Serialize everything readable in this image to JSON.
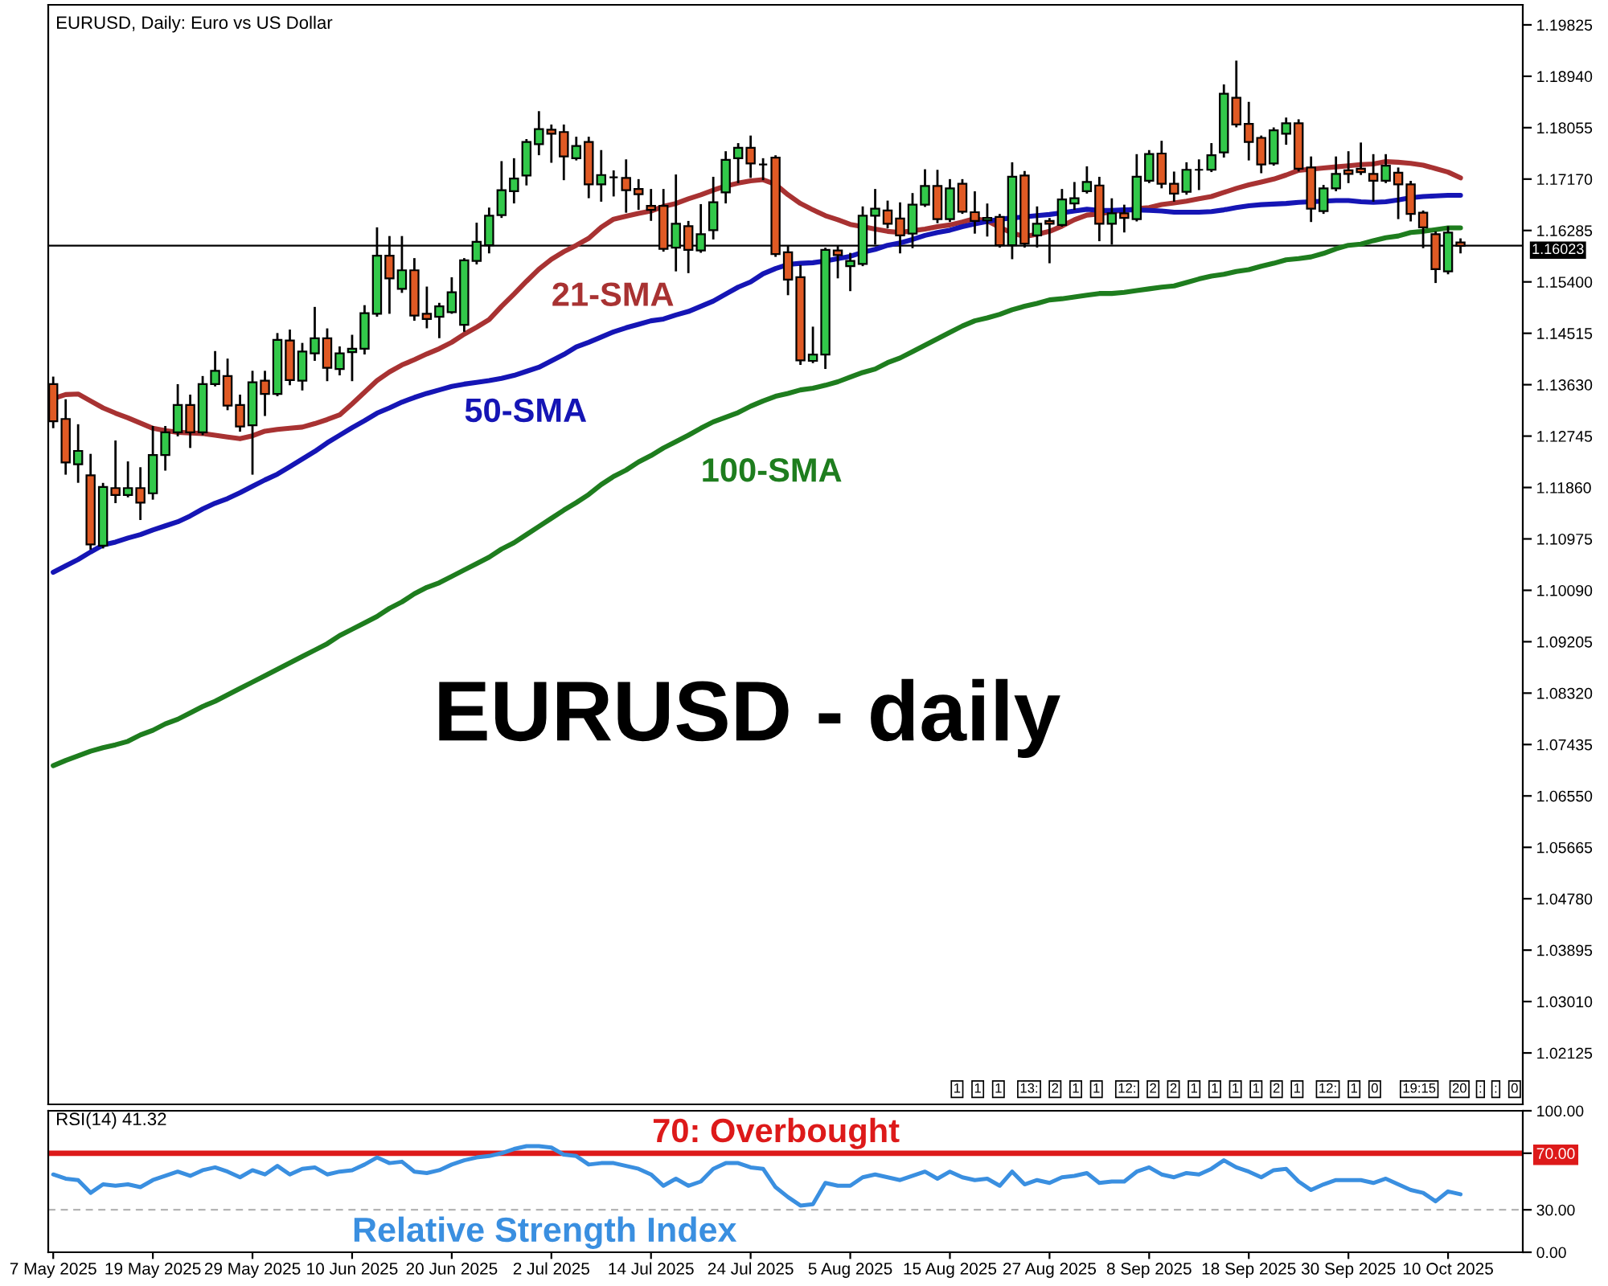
{
  "chart_data": [
    {
      "type": "candlestick",
      "title": "EURUSD, Daily: Euro vs US Dollar",
      "subtitle": "EURUSD - daily",
      "categories": [
        "7 May 2025",
        null,
        null,
        null,
        null,
        null,
        null,
        null,
        "19 May 2025",
        null,
        null,
        null,
        null,
        null,
        null,
        null,
        "29 May 2025",
        null,
        null,
        null,
        null,
        null,
        null,
        null,
        "10 Jun 2025",
        null,
        null,
        null,
        null,
        null,
        null,
        null,
        "20 Jun 2025",
        null,
        null,
        null,
        null,
        null,
        null,
        null,
        "2 Jul 2025",
        null,
        null,
        null,
        null,
        null,
        null,
        null,
        "14 Jul 2025",
        null,
        null,
        null,
        null,
        null,
        null,
        null,
        "24 Jul 2025",
        null,
        null,
        null,
        null,
        null,
        null,
        null,
        "5 Aug 2025",
        null,
        null,
        null,
        null,
        null,
        null,
        null,
        "15 Aug 2025",
        null,
        null,
        null,
        null,
        null,
        null,
        null,
        "27 Aug 2025",
        null,
        null,
        null,
        null,
        null,
        null,
        null,
        "8 Sep 2025",
        null,
        null,
        null,
        null,
        null,
        null,
        null,
        "18 Sep 2025",
        null,
        null,
        null,
        null,
        null,
        null,
        null,
        "30 Sep 2025",
        null,
        null,
        null,
        null,
        null,
        null,
        null,
        "10 Oct 2025",
        null
      ],
      "ohlc": [
        [
          1.1364,
          1.1375,
          1.129,
          1.13
        ],
        [
          1.1304,
          1.1336,
          1.121,
          1.1229
        ],
        [
          1.1226,
          1.1293,
          1.1196,
          1.1249
        ],
        [
          1.1207,
          1.1242,
          1.1081,
          1.1088
        ],
        [
          1.1086,
          1.1192,
          1.1083,
          1.1187
        ],
        [
          1.1185,
          1.1265,
          1.1161,
          1.1173
        ],
        [
          1.1173,
          1.1229,
          1.1171,
          1.1185
        ],
        [
          1.1185,
          1.1219,
          1.1132,
          1.116
        ],
        [
          1.1176,
          1.129,
          1.1167,
          1.1242
        ],
        [
          1.1242,
          1.129,
          1.1217,
          1.1281
        ],
        [
          1.1281,
          1.1362,
          1.1276,
          1.1328
        ],
        [
          1.1328,
          1.1344,
          1.1256,
          1.1281
        ],
        [
          1.1281,
          1.1376,
          1.1278,
          1.1364
        ],
        [
          1.1364,
          1.1419,
          1.1362,
          1.1387
        ],
        [
          1.1378,
          1.1406,
          1.1321,
          1.1327
        ],
        [
          1.1328,
          1.1344,
          1.1284,
          1.1291
        ],
        [
          1.1293,
          1.1385,
          1.121,
          1.1367
        ],
        [
          1.137,
          1.1385,
          1.1311,
          1.1347
        ],
        [
          1.1347,
          1.145,
          1.1345,
          1.144
        ],
        [
          1.1439,
          1.1456,
          1.1364,
          1.1371
        ],
        [
          1.137,
          1.1433,
          1.1355,
          1.142
        ],
        [
          1.1417,
          1.1495,
          1.1406,
          1.1443
        ],
        [
          1.1443,
          1.1458,
          1.1371,
          1.1392
        ],
        [
          1.139,
          1.1427,
          1.1381,
          1.1417
        ],
        [
          1.1419,
          1.1447,
          1.1371,
          1.1425
        ],
        [
          1.1425,
          1.1498,
          1.1417,
          1.1486
        ],
        [
          1.1485,
          1.1632,
          1.1482,
          1.1585
        ],
        [
          1.1585,
          1.1617,
          1.1487,
          1.1546
        ],
        [
          1.1528,
          1.1617,
          1.1523,
          1.156
        ],
        [
          1.156,
          1.1579,
          1.1475,
          1.1482
        ],
        [
          1.1485,
          1.153,
          1.1462,
          1.1476
        ],
        [
          1.148,
          1.1502,
          1.1445,
          1.1498
        ],
        [
          1.1488,
          1.1546,
          1.1487,
          1.1522
        ],
        [
          1.1466,
          1.1579,
          1.1456,
          1.1577
        ],
        [
          1.1576,
          1.164,
          1.1572,
          1.1609
        ],
        [
          1.1603,
          1.1666,
          1.1591,
          1.1654
        ],
        [
          1.1655,
          1.1746,
          1.1652,
          1.1698
        ],
        [
          1.1696,
          1.1751,
          1.1677,
          1.1718
        ],
        [
          1.1723,
          1.1784,
          1.1708,
          1.1781
        ],
        [
          1.1777,
          1.1832,
          1.176,
          1.1803
        ],
        [
          1.1802,
          1.1809,
          1.1747,
          1.1795
        ],
        [
          1.1798,
          1.1809,
          1.1717,
          1.1756
        ],
        [
          1.1753,
          1.1788,
          1.1751,
          1.1774
        ],
        [
          1.1781,
          1.1788,
          1.1686,
          1.1708
        ],
        [
          1.1708,
          1.1765,
          1.168,
          1.1724
        ],
        [
          1.172,
          1.173,
          1.1689,
          1.172
        ],
        [
          1.1719,
          1.1749,
          1.1661,
          1.1698
        ],
        [
          1.17,
          1.1715,
          1.1666,
          1.1691
        ],
        [
          1.1671,
          1.1698,
          1.1647,
          1.1664
        ],
        [
          1.1671,
          1.1698,
          1.1594,
          1.1597
        ],
        [
          1.1599,
          1.1723,
          1.156,
          1.164
        ],
        [
          1.1636,
          1.1643,
          1.1557,
          1.1595
        ],
        [
          1.1594,
          1.1672,
          1.1592,
          1.1622
        ],
        [
          1.1629,
          1.1719,
          1.1615,
          1.1677
        ],
        [
          1.1694,
          1.1763,
          1.1677,
          1.175
        ],
        [
          1.1753,
          1.1777,
          1.1712,
          1.1771
        ],
        [
          1.1771,
          1.179,
          1.1721,
          1.1744
        ],
        [
          1.1742,
          1.1751,
          1.1717,
          1.1742
        ],
        [
          1.1754,
          1.1756,
          1.1585,
          1.1588
        ],
        [
          1.1591,
          1.16,
          1.1519,
          1.1544
        ],
        [
          1.1548,
          1.1567,
          1.1399,
          1.1405
        ],
        [
          1.1404,
          1.1461,
          1.1402,
          1.1415
        ],
        [
          1.1415,
          1.1597,
          1.1392,
          1.1595
        ],
        [
          1.1594,
          1.16,
          1.1548,
          1.1586
        ],
        [
          1.1567,
          1.1588,
          1.1526,
          1.1576
        ],
        [
          1.1571,
          1.1668,
          1.1569,
          1.1654
        ],
        [
          1.1654,
          1.1698,
          1.1606,
          1.1666
        ],
        [
          1.1663,
          1.1678,
          1.1634,
          1.164
        ],
        [
          1.1649,
          1.1675,
          1.1591,
          1.162
        ],
        [
          1.1623,
          1.1691,
          1.16,
          1.1673
        ],
        [
          1.1673,
          1.1732,
          1.1671,
          1.1705
        ],
        [
          1.1705,
          1.1731,
          1.1643,
          1.1648
        ],
        [
          1.1648,
          1.1715,
          1.1645,
          1.1701
        ],
        [
          1.1709,
          1.1715,
          1.1659,
          1.1661
        ],
        [
          1.166,
          1.1694,
          1.1625,
          1.1645
        ],
        [
          1.1646,
          1.1673,
          1.162,
          1.165
        ],
        [
          1.1652,
          1.1655,
          1.1601,
          1.1603
        ],
        [
          1.1603,
          1.1744,
          1.1581,
          1.1721
        ],
        [
          1.1723,
          1.1729,
          1.1601,
          1.1606
        ],
        [
          1.162,
          1.1668,
          1.1601,
          1.164
        ],
        [
          1.1645,
          1.1648,
          1.1574,
          1.164
        ],
        [
          1.1638,
          1.1698,
          1.1637,
          1.1682
        ],
        [
          1.1675,
          1.171,
          1.1666,
          1.1684
        ],
        [
          1.1696,
          1.1737,
          1.1694,
          1.1712
        ],
        [
          1.1706,
          1.1719,
          1.1612,
          1.164
        ],
        [
          1.164,
          1.1682,
          1.1606,
          1.1658
        ],
        [
          1.1658,
          1.1671,
          1.1627,
          1.165
        ],
        [
          1.1648,
          1.1758,
          1.1646,
          1.1721
        ],
        [
          1.1714,
          1.1765,
          1.1712,
          1.176
        ],
        [
          1.1761,
          1.1781,
          1.1703,
          1.1709
        ],
        [
          1.1709,
          1.1728,
          1.168,
          1.1692
        ],
        [
          1.1695,
          1.1744,
          1.1692,
          1.1733
        ],
        [
          1.1733,
          1.1749,
          1.17,
          1.1733
        ],
        [
          1.1733,
          1.1777,
          1.1731,
          1.1758
        ],
        [
          1.1763,
          1.1878,
          1.1756,
          1.1864
        ],
        [
          1.1857,
          1.1919,
          1.1808,
          1.1811
        ],
        [
          1.1812,
          1.1848,
          1.1751,
          1.1781
        ],
        [
          1.1788,
          1.179,
          1.1729,
          1.1742
        ],
        [
          1.1744,
          1.1804,
          1.1742,
          1.1801
        ],
        [
          1.1795,
          1.1821,
          1.1778,
          1.1813
        ],
        [
          1.1813,
          1.1818,
          1.1732,
          1.1735
        ],
        [
          1.1737,
          1.1754,
          1.1645,
          1.1666
        ],
        [
          1.1662,
          1.1705,
          1.1659,
          1.1701
        ],
        [
          1.1701,
          1.1754,
          1.1698,
          1.1726
        ],
        [
          1.1732,
          1.1763,
          1.1712,
          1.1726
        ],
        [
          1.1735,
          1.1778,
          1.1726,
          1.1729
        ],
        [
          1.1726,
          1.1758,
          1.168,
          1.1714
        ],
        [
          1.1714,
          1.1758,
          1.1712,
          1.174
        ],
        [
          1.1728,
          1.1735,
          1.165,
          1.1708
        ],
        [
          1.1708,
          1.1712,
          1.1646,
          1.1657
        ],
        [
          1.1659,
          1.1661,
          1.16,
          1.1634
        ],
        [
          1.1622,
          1.1625,
          1.154,
          1.1562
        ],
        [
          1.1558,
          1.1634,
          1.1555,
          1.1625
        ],
        [
          1.1608,
          1.1613,
          1.1591,
          1.1602
        ]
      ],
      "colors": [
        "#e05a24",
        "#e05a24",
        "#32c84a",
        "#e05a24",
        "#32c84a",
        "#e05a24",
        "#32c84a",
        "#e05a24",
        "#32c84a",
        "#32c84a",
        "#32c84a",
        "#e05a24",
        "#32c84a",
        "#32c84a",
        "#e05a24",
        "#e05a24",
        "#32c84a",
        "#e05a24",
        "#32c84a",
        "#e05a24",
        "#32c84a",
        "#32c84a",
        "#e05a24",
        "#32c84a",
        "#32c84a",
        "#32c84a",
        "#32c84a",
        "#e05a24",
        "#32c84a",
        "#e05a24",
        "#e05a24",
        "#32c84a",
        "#32c84a",
        "#32c84a",
        "#32c84a",
        "#32c84a",
        "#32c84a",
        "#32c84a",
        "#32c84a",
        "#32c84a",
        "#e05a24",
        "#e05a24",
        "#32c84a",
        "#e05a24",
        "#32c84a",
        "#000000",
        "#e05a24",
        "#e05a24",
        "#e05a24",
        "#e05a24",
        "#32c84a",
        "#e05a24",
        "#32c84a",
        "#32c84a",
        "#32c84a",
        "#32c84a",
        "#e05a24",
        "#000000",
        "#e05a24",
        "#e05a24",
        "#e05a24",
        "#32c84a",
        "#32c84a",
        "#e05a24",
        "#32c84a",
        "#32c84a",
        "#32c84a",
        "#e05a24",
        "#e05a24",
        "#32c84a",
        "#32c84a",
        "#e05a24",
        "#32c84a",
        "#e05a24",
        "#e05a24",
        "#32c84a",
        "#e05a24",
        "#32c84a",
        "#e05a24",
        "#32c84a",
        "#e05a24",
        "#32c84a",
        "#32c84a",
        "#32c84a",
        "#e05a24",
        "#32c84a",
        "#e05a24",
        "#32c84a",
        "#32c84a",
        "#e05a24",
        "#e05a24",
        "#32c84a",
        "#000000",
        "#32c84a",
        "#32c84a",
        "#e05a24",
        "#e05a24",
        "#e05a24",
        "#32c84a",
        "#32c84a",
        "#e05a24",
        "#e05a24",
        "#32c84a",
        "#32c84a",
        "#e05a24",
        "#e05a24",
        "#e05a24",
        "#32c84a",
        "#e05a24",
        "#e05a24",
        "#e05a24",
        "#e05a24",
        "#32c84a",
        "#e05a24"
      ],
      "series": [
        {
          "name": "21-SMA",
          "type": "line",
          "color": "#a83232",
          "values": [
            1.1339,
            1.1346,
            1.1347,
            1.1335,
            1.1323,
            1.1314,
            1.1306,
            1.1297,
            1.1288,
            1.1284,
            1.1281,
            1.128,
            1.1279,
            1.1276,
            1.1273,
            1.127,
            1.1275,
            1.1283,
            1.1286,
            1.1288,
            1.129,
            1.1296,
            1.1303,
            1.1311,
            1.133,
            1.135,
            1.137,
            1.1385,
            1.1397,
            1.1406,
            1.1416,
            1.1425,
            1.1436,
            1.145,
            1.1462,
            1.1475,
            1.1498,
            1.1519,
            1.1541,
            1.1562,
            1.1579,
            1.1592,
            1.1603,
            1.1615,
            1.1634,
            1.1648,
            1.1653,
            1.1658,
            1.1662,
            1.167,
            1.1675,
            1.1683,
            1.169,
            1.1698,
            1.1705,
            1.171,
            1.1714,
            1.1716,
            1.1708,
            1.169,
            1.1675,
            1.1664,
            1.1654,
            1.1647,
            1.1639,
            1.1635,
            1.1631,
            1.1627,
            1.1625,
            1.1628,
            1.1631,
            1.1635,
            1.1638,
            1.1643,
            1.1649,
            1.1645,
            1.1634,
            1.1624,
            1.1618,
            1.1622,
            1.1627,
            1.1636,
            1.1647,
            1.1655,
            1.1657,
            1.1661,
            1.1663,
            1.1666,
            1.1668,
            1.1673,
            1.1676,
            1.1679,
            1.1683,
            1.1687,
            1.1694,
            1.1701,
            1.1707,
            1.1712,
            1.1717,
            1.1724,
            1.1732,
            1.1734,
            1.1736,
            1.1738,
            1.174,
            1.1742,
            1.1743,
            1.1747,
            1.1746,
            1.1744,
            1.1741,
            1.1735,
            1.1729,
            1.1719
          ]
        },
        {
          "name": "50-SMA",
          "type": "line",
          "color": "#1515b5",
          "values": [
            1.104,
            1.1051,
            1.1062,
            1.1075,
            1.1087,
            1.1092,
            1.1099,
            1.1105,
            1.1113,
            1.112,
            1.1127,
            1.1137,
            1.1149,
            1.1159,
            1.1167,
            1.1177,
            1.1188,
            1.1199,
            1.1209,
            1.1222,
            1.1235,
            1.1248,
            1.1263,
            1.1276,
            1.1289,
            1.1301,
            1.1314,
            1.1323,
            1.1333,
            1.1341,
            1.1348,
            1.1354,
            1.136,
            1.1364,
            1.1367,
            1.137,
            1.1374,
            1.1379,
            1.1386,
            1.1393,
            1.1404,
            1.1415,
            1.1428,
            1.1436,
            1.1445,
            1.1454,
            1.1461,
            1.1467,
            1.1473,
            1.1476,
            1.1483,
            1.1489,
            1.1498,
            1.1507,
            1.1519,
            1.1531,
            1.154,
            1.1554,
            1.1563,
            1.157,
            1.1572,
            1.1573,
            1.1576,
            1.158,
            1.1584,
            1.1591,
            1.1596,
            1.1603,
            1.1607,
            1.1613,
            1.162,
            1.1625,
            1.1629,
            1.1635,
            1.164,
            1.1644,
            1.1648,
            1.165,
            1.1652,
            1.1654,
            1.1656,
            1.1659,
            1.1662,
            1.1665,
            1.1663,
            1.1663,
            1.1664,
            1.1664,
            1.1663,
            1.1662,
            1.166,
            1.166,
            1.166,
            1.1661,
            1.1664,
            1.1668,
            1.1671,
            1.1673,
            1.1674,
            1.1675,
            1.1677,
            1.1678,
            1.1679,
            1.168,
            1.168,
            1.1678,
            1.1677,
            1.1678,
            1.1681,
            1.1685,
            1.1687,
            1.1688,
            1.1689,
            1.1689
          ]
        },
        {
          "name": "100-SMA",
          "type": "line",
          "color": "#1e7d1e",
          "values": [
            1.0707,
            1.0716,
            1.0724,
            1.0732,
            1.0738,
            1.0743,
            1.0749,
            1.076,
            1.0768,
            1.0779,
            1.0787,
            1.0798,
            1.0809,
            1.0818,
            1.0829,
            1.084,
            1.0851,
            1.0862,
            1.0873,
            1.0884,
            1.0895,
            1.0906,
            1.0917,
            1.0931,
            1.0942,
            1.0953,
            1.0964,
            1.0978,
            1.0989,
            1.1003,
            1.1014,
            1.1022,
            1.1033,
            1.1044,
            1.1055,
            1.1066,
            1.108,
            1.1091,
            1.1105,
            1.1119,
            1.1133,
            1.1147,
            1.116,
            1.1174,
            1.1191,
            1.1205,
            1.1216,
            1.123,
            1.1241,
            1.1254,
            1.1265,
            1.1276,
            1.1288,
            1.1299,
            1.1307,
            1.1315,
            1.1326,
            1.1335,
            1.1343,
            1.1348,
            1.1354,
            1.1357,
            1.1362,
            1.1368,
            1.1376,
            1.1384,
            1.139,
            1.1401,
            1.1409,
            1.142,
            1.1431,
            1.1442,
            1.1453,
            1.1464,
            1.1473,
            1.1478,
            1.1484,
            1.1492,
            1.1498,
            1.1503,
            1.1509,
            1.1511,
            1.1514,
            1.1517,
            1.152,
            1.152,
            1.1522,
            1.1525,
            1.1528,
            1.1531,
            1.1533,
            1.1539,
            1.1545,
            1.155,
            1.1553,
            1.1558,
            1.1561,
            1.1567,
            1.1572,
            1.1578,
            1.158,
            1.1583,
            1.1589,
            1.1597,
            1.1603,
            1.1605,
            1.1611,
            1.1616,
            1.1619,
            1.1625,
            1.1627,
            1.163,
            1.1633,
            1.1633
          ]
        }
      ],
      "ylim": [
        1.0124,
        1.2017
      ],
      "yticks": [
        1.02125,
        {
          "value": 1.0301,
          "label": "1.03010"
        },
        1.03895,
        {
          "value": 1.0478,
          "label": "1.04780"
        },
        1.05665,
        {
          "value": 1.0655,
          "label": "1.06550"
        },
        1.07435,
        {
          "value": 1.0832,
          "label": "1.08320"
        },
        1.09205,
        {
          "value": 1.1009,
          "label": "1.10090"
        },
        1.10975,
        {
          "value": 1.1186,
          "label": "1.11860"
        },
        1.12745,
        {
          "value": 1.1363,
          "label": "1.13630"
        },
        1.14515,
        {
          "value": 1.154,
          "label": "1.15400"
        },
        1.16285,
        {
          "value": 1.1717,
          "label": "1.17170"
        },
        1.18055,
        {
          "value": 1.1894,
          "label": "1.18940"
        },
        1.19825
      ],
      "ref_lines": [
        {
          "axis": "y",
          "value": 1.16023,
          "label": "1.16023",
          "color": "#000000",
          "line_style": "solid"
        }
      ],
      "annotations": [
        "1",
        "1",
        "1",
        "13:",
        "2",
        "1",
        "1",
        "12:",
        "2",
        "2",
        "1",
        "1",
        "1",
        "1",
        "2",
        "1",
        "12:",
        "1",
        "0",
        "19:15",
        "20",
        ":",
        ":",
        "0"
      ]
    },
    {
      "type": "line",
      "title": "RSI(14) 41.32",
      "categories": [
        null,
        null,
        null,
        null,
        null,
        null,
        null,
        null,
        null,
        null,
        null,
        null,
        null,
        null,
        null,
        null,
        null,
        null,
        null,
        null,
        null,
        null,
        null,
        null,
        null,
        null,
        null,
        null,
        null,
        null,
        null,
        null,
        null,
        null,
        null,
        null,
        null,
        null,
        null,
        null,
        null,
        null,
        null,
        null,
        null,
        null,
        null,
        null,
        null,
        null,
        null,
        null,
        null,
        null,
        null,
        null,
        null,
        null,
        null,
        null,
        null,
        null,
        null,
        null,
        null,
        null,
        null,
        null,
        null,
        null,
        null,
        null,
        null,
        null,
        null,
        null,
        null,
        null,
        null,
        null,
        null,
        null,
        null,
        null,
        null,
        null,
        null,
        null,
        null,
        null,
        null,
        null,
        null,
        null,
        null,
        null,
        null,
        null,
        null,
        null,
        null,
        null,
        null,
        null,
        null,
        null,
        null,
        null,
        null,
        null,
        null,
        null,
        null,
        null
      ],
      "series": [
        {
          "name": "Relative Strength Index",
          "color": "#3a8fe0",
          "values": [
            55,
            52,
            51,
            42,
            48,
            47,
            48,
            46,
            51,
            54,
            57,
            54,
            58,
            60,
            57,
            53,
            58,
            55,
            61,
            55,
            59,
            60,
            55,
            57,
            58,
            62,
            67,
            63,
            64,
            57,
            56,
            58,
            62,
            65,
            67,
            68,
            70,
            73,
            75,
            75,
            74,
            69,
            68,
            62,
            63,
            63,
            61,
            59,
            55,
            47,
            52,
            47,
            50,
            59,
            63,
            63,
            60,
            59,
            46,
            39,
            33,
            34,
            49,
            47,
            47,
            53,
            55,
            53,
            51,
            54,
            57,
            52,
            57,
            53,
            51,
            52,
            47,
            57,
            48,
            51,
            49,
            53,
            54,
            56,
            49,
            50,
            50,
            57,
            60,
            55,
            53,
            56,
            55,
            59,
            65,
            60,
            57,
            53,
            58,
            59,
            50,
            44,
            48,
            51,
            51,
            51,
            49,
            52,
            48,
            44,
            42,
            36,
            43,
            41
          ]
        }
      ],
      "ylim": [
        0,
        100
      ],
      "yticks": [
        {
          "value": 100,
          "label": "100.00"
        },
        {
          "value": 70,
          "label": "70.00"
        },
        {
          "value": 30,
          "label": "30.00"
        },
        {
          "value": 0,
          "label": "0.00"
        }
      ],
      "ref_lines": [
        {
          "axis": "y",
          "value": 70,
          "label": "70: Overbought",
          "color": "#dd1a1a",
          "line_style": "solid"
        },
        {
          "axis": "y",
          "value": 30,
          "color": "#b4b4b4",
          "line_style": "dashed"
        }
      ],
      "tick_labels": "y"
    }
  ]
}
